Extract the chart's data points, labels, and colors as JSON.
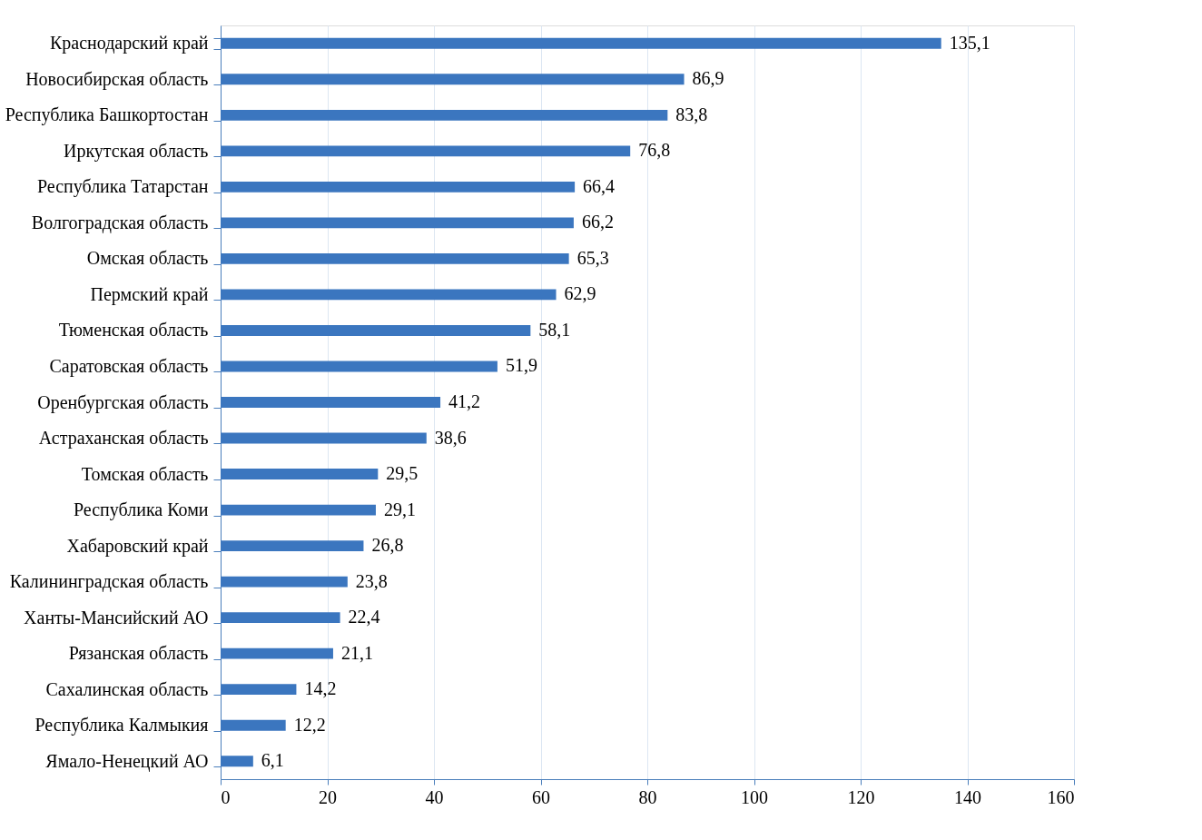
{
  "chart_data": {
    "type": "bar",
    "orientation": "horizontal",
    "categories": [
      "Краснодарский край",
      "Новосибирская область",
      "Республика Башкортостан",
      "Иркутская область",
      "Республика Татарстан",
      "Волгоградская область",
      "Омская область",
      "Пермский край",
      "Тюменская область",
      "Саратовская область",
      "Оренбургская область",
      "Астраханская область",
      "Томская область",
      "Республика Коми",
      "Хабаровский край",
      "Калининградская область",
      "Ханты-Мансийский АО",
      "Рязанская область",
      "Сахалинская область",
      "Республика Калмыкия",
      "Ямало-Ненецкий АО"
    ],
    "values": [
      135.1,
      86.9,
      83.8,
      76.8,
      66.4,
      66.2,
      65.3,
      62.9,
      58.1,
      51.9,
      41.2,
      38.6,
      29.5,
      29.1,
      26.8,
      23.8,
      22.4,
      21.1,
      14.2,
      12.2,
      6.1
    ],
    "value_labels": [
      "135,1",
      "86,9",
      "83,8",
      "76,8",
      "66,4",
      "66,2",
      "65,3",
      "62,9",
      "58,1",
      "51,9",
      "41,2",
      "38,6",
      "29,5",
      "29,1",
      "26,8",
      "23,8",
      "22,4",
      "21,1",
      "14,2",
      "12,2",
      "6,1"
    ],
    "color": "#3b76bf",
    "xlim": [
      0,
      160
    ],
    "xticks": [
      0,
      20,
      40,
      60,
      80,
      100,
      120,
      140,
      160
    ],
    "grid": "x"
  }
}
